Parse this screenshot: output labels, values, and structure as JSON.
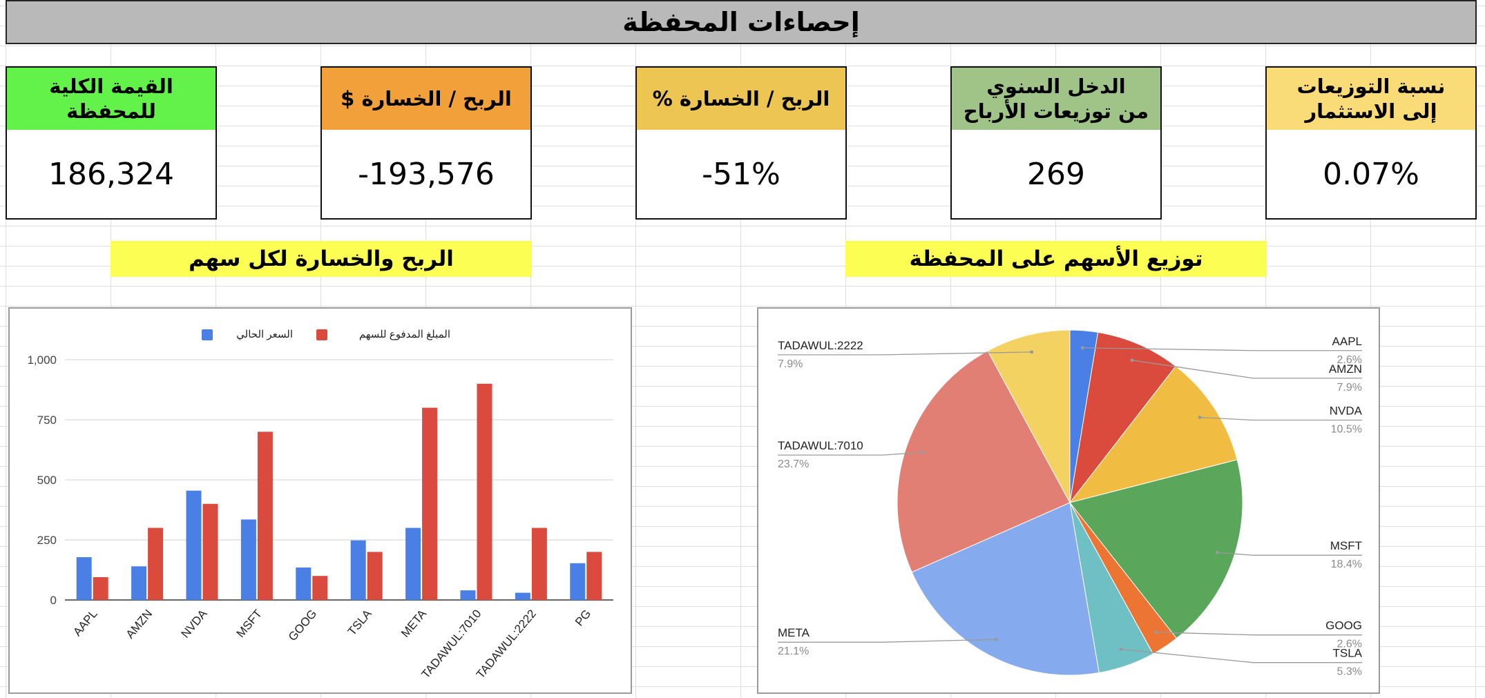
{
  "header": {
    "title": "إحصاءات المحفظة"
  },
  "stats": [
    {
      "label": "القيمة الكلية للمحفظة",
      "value": "186,324",
      "color": "#62f24a"
    },
    {
      "label": "الربح / الخسارة $",
      "value": "-193,576",
      "color": "#f2a13a"
    },
    {
      "label": "الربح / الخسارة %",
      "value": "-51%",
      "color": "#ecc552"
    },
    {
      "label": "الدخل السنوي\nمن توزيعات الأرباح",
      "value": "269",
      "color": "#a0c387"
    },
    {
      "label": "نسبة التوزيعات\nإلى الاستثمار",
      "value": "0.07%",
      "color": "#f9db78"
    }
  ],
  "sections": {
    "bar_title": "الربح والخسارة لكل سهم",
    "pie_title": "توزيع الأسهم على المحفظة"
  },
  "chart_data": [
    {
      "type": "bar",
      "categories": [
        "AAPL",
        "AMZN",
        "NVDA",
        "MSFT",
        "GOOG",
        "TSLA",
        "META",
        "TADAWUL:7010",
        "TADAWUL:2222",
        "PG"
      ],
      "series": [
        {
          "name": "السعر الحالي",
          "color": "#4a7fe5",
          "values": [
            178,
            140,
            455,
            335,
            135,
            248,
            300,
            40,
            30,
            153
          ]
        },
        {
          "name": "المبلغ المدفوع للسهم",
          "color": "#da4a3d",
          "values": [
            95,
            300,
            400,
            700,
            100,
            200,
            800,
            900,
            300,
            200
          ]
        }
      ],
      "ylim": [
        0,
        1000
      ],
      "yticks": [
        0,
        250,
        500,
        750,
        1000
      ],
      "ytick_labels": [
        "0",
        "250",
        "500",
        "750",
        "1,000"
      ],
      "grid": true,
      "legend": "top"
    },
    {
      "type": "pie",
      "slices": [
        {
          "label": "AAPL",
          "pct": "2.6%",
          "value": 2.6,
          "color": "#4a7fe5",
          "side": "right"
        },
        {
          "label": "AMZN",
          "pct": "7.9%",
          "value": 7.9,
          "color": "#da4a3d",
          "side": "right"
        },
        {
          "label": "NVDA",
          "pct": "10.5%",
          "value": 10.5,
          "color": "#f1bc42",
          "side": "right"
        },
        {
          "label": "MSFT",
          "pct": "18.4%",
          "value": 18.4,
          "color": "#5aa65b",
          "side": "right"
        },
        {
          "label": "GOOG",
          "pct": "2.6%",
          "value": 2.6,
          "color": "#ed7533",
          "side": "right"
        },
        {
          "label": "TSLA",
          "pct": "5.3%",
          "value": 5.3,
          "color": "#6ec0c4",
          "side": "right"
        },
        {
          "label": "META",
          "pct": "21.1%",
          "value": 21.1,
          "color": "#86aaee",
          "side": "left"
        },
        {
          "label": "TADAWUL:7010",
          "pct": "23.7%",
          "value": 23.7,
          "color": "#e27f75",
          "side": "left"
        },
        {
          "label": "TADAWUL:2222",
          "pct": "7.9%",
          "value": 7.9,
          "color": "#f4d262",
          "side": "left"
        }
      ]
    }
  ]
}
